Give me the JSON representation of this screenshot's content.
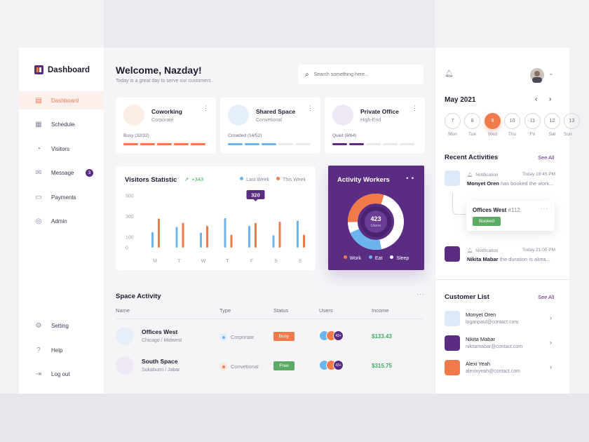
{
  "brand": {
    "title": "Dashboard"
  },
  "sidebar": {
    "items": [
      {
        "label": "Dashboard",
        "icon": "dashboard-icon",
        "active": true
      },
      {
        "label": "Schedule",
        "icon": "calendar-icon"
      },
      {
        "label": "Visitors",
        "icon": "visitors-icon"
      },
      {
        "label": "Message",
        "icon": "message-icon",
        "badge": "3"
      },
      {
        "label": "Payments",
        "icon": "card-icon"
      },
      {
        "label": "Admin",
        "icon": "admin-icon"
      }
    ],
    "bottom": [
      {
        "label": "Setting",
        "icon": "gear-icon"
      },
      {
        "label": "Help",
        "icon": "help-icon"
      },
      {
        "label": "Log out",
        "icon": "logout-icon"
      }
    ]
  },
  "header": {
    "welcome": "Welcome, Nazday!",
    "subtitle": "Today is a great day to serve our customers .",
    "search_placeholder": "Search something here..."
  },
  "spaces": [
    {
      "name": "Coworking",
      "type": "Corporate",
      "status": "Busy (32/32)",
      "filled": 5,
      "color": "#f07a4a"
    },
    {
      "name": "Shared Space",
      "type": "Convetional",
      "status": "Crowded (14/52)",
      "filled": 3,
      "color": "#6cb4ee"
    },
    {
      "name": "Private Office",
      "type": "High-End",
      "status": "Quiet (8/64)",
      "filled": 2,
      "color": "#5a2d82"
    }
  ],
  "visitors": {
    "title": "Visitors Statistic",
    "trend": "+343",
    "tooltip": "320",
    "legend": [
      "Last Week",
      "This Week"
    ]
  },
  "chart_data": {
    "type": "bar",
    "categories": [
      "M",
      "T",
      "W",
      "T",
      "F",
      "S",
      "S"
    ],
    "series": [
      {
        "name": "Last Week",
        "color": "#6cb4ee",
        "values": [
          150,
          200,
          145,
          285,
          210,
          120,
          260
        ]
      },
      {
        "name": "This Week",
        "color": "#f07a4a",
        "values": [
          280,
          240,
          210,
          125,
          240,
          250,
          125
        ]
      }
    ],
    "yticks": [
      "500",
      "300",
      "100",
      "0"
    ],
    "ylim": [
      0,
      500
    ]
  },
  "workers": {
    "title": "Activity Workers",
    "total": "423",
    "unit": "Users",
    "legend": [
      {
        "label": "Work",
        "color": "#f07a4a"
      },
      {
        "label": "Eat",
        "color": "#6cb4ee"
      },
      {
        "label": "Sleep",
        "color": "#ffffff"
      }
    ]
  },
  "space_activity": {
    "title": "Space Activity",
    "columns": [
      "Name",
      "Type",
      "Status",
      "Users",
      "Income"
    ],
    "rows": [
      {
        "name": "Offices West",
        "location": "Chicago / Midwest",
        "type": "Corporate",
        "status": "Busy",
        "status_color": "#f07a4a",
        "users_more": "43+",
        "income": "$133.43"
      },
      {
        "name": "South Space",
        "location": "Sukabumi / Jabar",
        "type": "Convetional",
        "status": "Free",
        "status_color": "#5cab64",
        "users_more": "43+",
        "income": "$315.75"
      }
    ]
  },
  "calendar": {
    "month": "May 2021",
    "days": [
      {
        "num": "7",
        "label": "Mon"
      },
      {
        "num": "8",
        "label": "Tue"
      },
      {
        "num": "9",
        "label": "Wed",
        "active": true
      },
      {
        "num": "10",
        "label": "Thu"
      },
      {
        "num": "11",
        "label": "Fri"
      },
      {
        "num": "12",
        "label": "Sat"
      },
      {
        "num": "13",
        "label": "Sun"
      }
    ]
  },
  "recent": {
    "title": "Recent Activities",
    "see_all": "See All",
    "items": [
      {
        "kind": "Notification",
        "time": "Today 19:45 PM",
        "name": "Monyet Oren",
        "text": "has booked the work..."
      },
      {
        "kind": "Notification",
        "time": "Today 21:00 PM",
        "name": "Nikita Mabar",
        "text": "the duration is alrea..."
      }
    ],
    "booking": {
      "name": "Offices West",
      "id": "#112",
      "status": "Booked"
    }
  },
  "customers": {
    "title": "Customer List",
    "see_all": "See All",
    "items": [
      {
        "name": "Monyet Oren",
        "email": "loganpaul@contact.com"
      },
      {
        "name": "Nikita Mabar",
        "email": "nikitamabar@contact.com"
      },
      {
        "name": "Alexi Yeah",
        "email": "alexixyeah@contact.com"
      }
    ]
  }
}
